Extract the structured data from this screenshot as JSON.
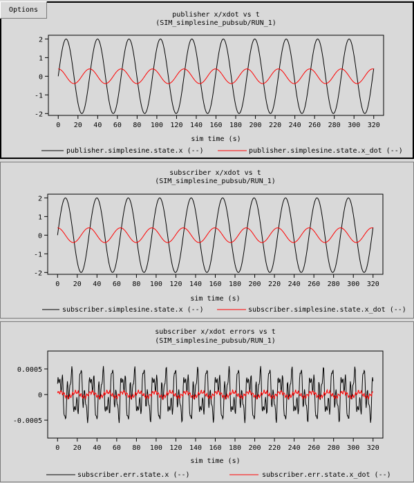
{
  "options_label": "Options",
  "chart_data": [
    {
      "type": "line",
      "title": "publisher x/xdot vs t",
      "subtitle": "(SIM_simplesine_pubsub/RUN_1)",
      "xlabel": "sim time (s)",
      "ylabel": "",
      "xlim": [
        -10,
        330
      ],
      "ylim": [
        -2.1,
        2.2
      ],
      "x_ticks": [
        "0",
        "20",
        "40",
        "60",
        "80",
        "100",
        "120",
        "140",
        "160",
        "180",
        "200",
        "220",
        "240",
        "260",
        "280",
        "300",
        "320"
      ],
      "y_ticks": [
        "-2",
        "-1",
        "0",
        "1",
        "2"
      ],
      "legend_position": "bottom",
      "series": [
        {
          "name": "publisher.simplesine.state.x (--)",
          "color": "#000000",
          "function": "2*sin(0.197*t)",
          "x_range": [
            0,
            320
          ]
        },
        {
          "name": "publisher.simplesine.state.x_dot (--)",
          "color": "#ff0000",
          "function": "0.394*cos(0.197*t)",
          "x_range": [
            0,
            320
          ]
        }
      ]
    },
    {
      "type": "line",
      "title": "subscriber x/xdot vs t",
      "subtitle": "(SIM_simplesine_pubsub/RUN_1)",
      "xlabel": "sim time (s)",
      "ylabel": "",
      "xlim": [
        -10,
        330
      ],
      "ylim": [
        -2.1,
        2.2
      ],
      "x_ticks": [
        "0",
        "20",
        "40",
        "60",
        "80",
        "100",
        "120",
        "140",
        "160",
        "180",
        "200",
        "220",
        "240",
        "260",
        "280",
        "300",
        "320"
      ],
      "y_ticks": [
        "-2",
        "-1",
        "0",
        "1",
        "2"
      ],
      "legend_position": "bottom",
      "series": [
        {
          "name": "subscriber.simplesine.state.x (--)",
          "color": "#000000",
          "function": "2*sin(0.197*t)",
          "x_range": [
            0,
            320
          ]
        },
        {
          "name": "subscriber.simplesine.state.x_dot (--)",
          "color": "#ff0000",
          "function": "0.394*cos(0.197*t)",
          "x_range": [
            0,
            320
          ]
        }
      ]
    },
    {
      "type": "line",
      "title": "subscriber x/xdot errors vs t",
      "subtitle": "(SIM_simplesine_pubsub/RUN_1)",
      "xlabel": "sim time (s)",
      "ylabel": "",
      "xlim": [
        -10,
        330
      ],
      "ylim": [
        -0.00085,
        0.00085
      ],
      "x_ticks": [
        "0",
        "20",
        "40",
        "60",
        "80",
        "100",
        "120",
        "140",
        "160",
        "180",
        "200",
        "220",
        "240",
        "260",
        "280",
        "300",
        "320"
      ],
      "y_ticks": [
        "-0.0005",
        "0",
        "0.0005"
      ],
      "legend_position": "bottom",
      "series": [
        {
          "name": "subscriber.err.state.x (--)",
          "color": "#000000",
          "function": "noisy error, amplitude ~0.0007",
          "x_range": [
            0,
            320
          ]
        },
        {
          "name": "subscriber.err.state.x_dot (--)",
          "color": "#ff0000",
          "function": "noisy error, amplitude ~0.0001",
          "x_range": [
            0,
            320
          ]
        }
      ]
    }
  ]
}
